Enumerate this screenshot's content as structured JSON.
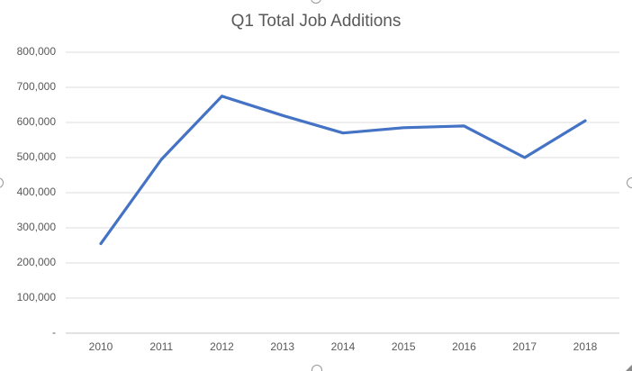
{
  "chart_data": {
    "type": "line",
    "title": "Q1 Total Job Additions",
    "categories": [
      "2010",
      "2011",
      "2012",
      "2013",
      "2014",
      "2015",
      "2016",
      "2017",
      "2018"
    ],
    "values": [
      255000,
      495000,
      675000,
      620000,
      570000,
      585000,
      590000,
      500000,
      605000
    ],
    "xlabel": "",
    "ylabel": "",
    "ylim": [
      0,
      800000
    ],
    "y_ticks": [
      {
        "value": 0,
        "label": "-"
      },
      {
        "value": 100000,
        "label": "100,000"
      },
      {
        "value": 200000,
        "label": "200,000"
      },
      {
        "value": 300000,
        "label": "300,000"
      },
      {
        "value": 400000,
        "label": "400,000"
      },
      {
        "value": 500000,
        "label": "500,000"
      },
      {
        "value": 600000,
        "label": "600,000"
      },
      {
        "value": 700000,
        "label": "700,000"
      },
      {
        "value": 800000,
        "label": "800,000"
      }
    ],
    "grid": true,
    "legend": false
  },
  "colors": {
    "line": "#4472C4",
    "gridline": "#DCDCDC",
    "axis_line": "#C6C6C6",
    "text": "#595959",
    "handle_border": "#979797",
    "background": "#FFFFFF",
    "cursor": "#8A8A8A"
  },
  "selection": {
    "state": "chart-selected",
    "handles": [
      "top-center",
      "bottom-center",
      "left-middle",
      "right-middle"
    ]
  }
}
